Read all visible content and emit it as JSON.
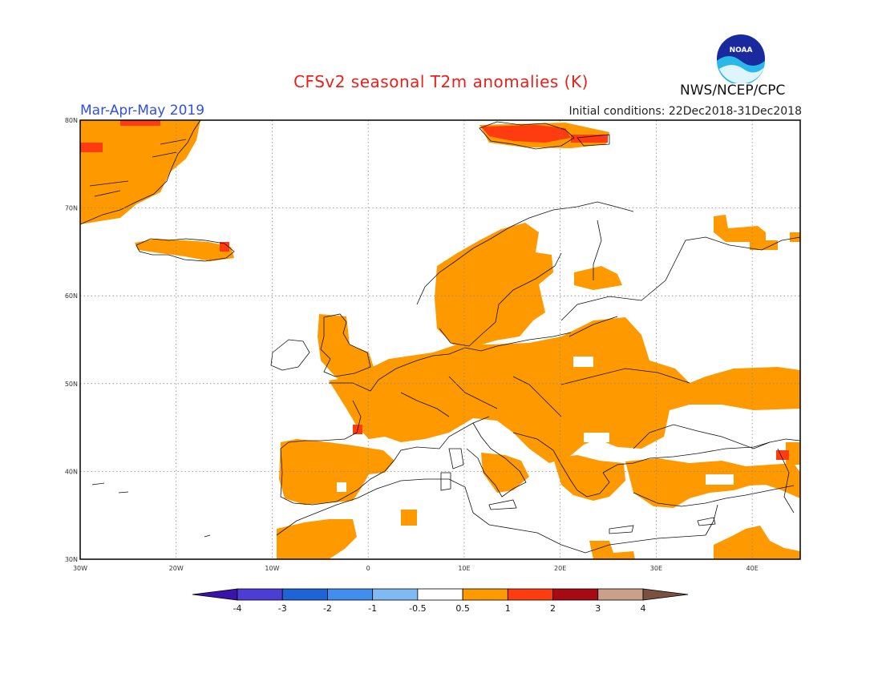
{
  "header": {
    "title": "CFSv2 seasonal T2m anomalies (K)",
    "season": "Mar-Apr-May 2019",
    "initial_conditions": "Initial conditions: 22Dec2018-31Dec2018",
    "agency": "NWS/NCEP/CPC",
    "logo_text": "NOAA"
  },
  "map": {
    "region": "Europe",
    "lon_range": [
      -30,
      45
    ],
    "lat_range": [
      30,
      80
    ],
    "lon_ticks": [
      "30W",
      "20W",
      "10W",
      "0",
      "10E",
      "20E",
      "30E",
      "40E"
    ],
    "lat_ticks": [
      "30N",
      "40N",
      "50N",
      "60N",
      "70N",
      "80N"
    ],
    "grid": "dotted"
  },
  "colorbar": {
    "labels": [
      "-4",
      "-3",
      "-2",
      "-1",
      "-0.5",
      "0.5",
      "1",
      "2",
      "3",
      "4"
    ],
    "colors": [
      "#3a14a8",
      "#4c3ed4",
      "#1f64d6",
      "#3f8ef0",
      "#80baf4",
      "#ffffff",
      "#ff9900",
      "#ff3b10",
      "#a80a14",
      "#c9a08a",
      "#7a5040"
    ]
  },
  "anomaly_colors": {
    "plus_0_5_to_1": "#ff9900",
    "plus_1_to_2": "#ff3b10"
  }
}
